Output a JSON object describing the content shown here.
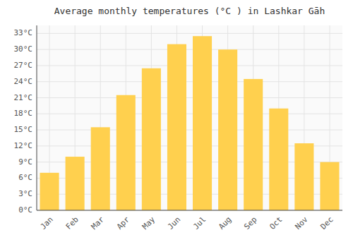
{
  "chart_data": {
    "type": "bar",
    "title": "Average monthly temperatures (°C ) in Lashkar Gāh",
    "categories": [
      "Jan",
      "Feb",
      "Mar",
      "Apr",
      "May",
      "Jun",
      "Jul",
      "Aug",
      "Sep",
      "Oct",
      "Nov",
      "Dec"
    ],
    "values": [
      7,
      10,
      15.5,
      21.5,
      26.5,
      31,
      32.5,
      30,
      24.5,
      19,
      12.5,
      9
    ],
    "color": "#FFD04E",
    "ylim": [
      0,
      34.5
    ],
    "yticks": [
      {
        "value": 0,
        "label": "0°C"
      },
      {
        "value": 3,
        "label": "3°C"
      },
      {
        "value": 6,
        "label": "6°C"
      },
      {
        "value": 9,
        "label": "9°C"
      },
      {
        "value": 12,
        "label": "12°C"
      },
      {
        "value": 15,
        "label": "15°C"
      },
      {
        "value": 18,
        "label": "18°C"
      },
      {
        "value": 21,
        "label": "21°C"
      },
      {
        "value": 24,
        "label": "24°C"
      },
      {
        "value": 27,
        "label": "27°C"
      },
      {
        "value": 30,
        "label": "30°C"
      },
      {
        "value": 33,
        "label": "33°C"
      }
    ],
    "grid": true
  }
}
